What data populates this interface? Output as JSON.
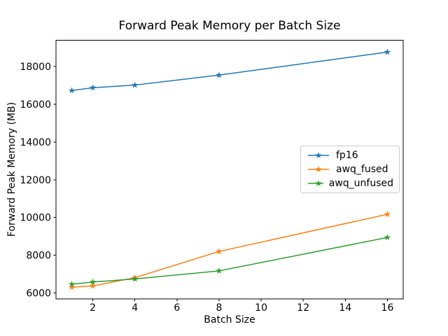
{
  "figure": {
    "background": "#ffffff",
    "text_color": "#000000"
  },
  "chart_data": {
    "type": "line",
    "title": "Forward Peak Memory per Batch Size",
    "xlabel": "Batch Size",
    "ylabel": "Forward Peak Memory (MB)",
    "x": [
      1,
      2,
      4,
      8,
      16
    ],
    "series": [
      {
        "name": "fp16",
        "color": "#1f77b4",
        "values": [
          16730,
          16880,
          17020,
          17550,
          18770
        ]
      },
      {
        "name": "awq_fused",
        "color": "#ff7f0e",
        "values": [
          6300,
          6370,
          6810,
          8200,
          10170
        ]
      },
      {
        "name": "awq_unfused",
        "color": "#2ca02c",
        "values": [
          6460,
          6580,
          6740,
          7170,
          8940
        ]
      }
    ],
    "xlim": [
      0.25,
      16.75
    ],
    "ylim": [
      5676,
      19394
    ],
    "x_ticks": [
      2,
      4,
      6,
      8,
      10,
      12,
      14,
      16
    ],
    "y_ticks": [
      6000,
      8000,
      10000,
      12000,
      14000,
      16000,
      18000
    ],
    "grid": false,
    "marker": "star",
    "line_width": 1.5,
    "legend_position": "center right"
  },
  "legend": {
    "items": [
      "fp16",
      "awq_fused",
      "awq_unfused"
    ],
    "border_color": "#cccccc"
  }
}
